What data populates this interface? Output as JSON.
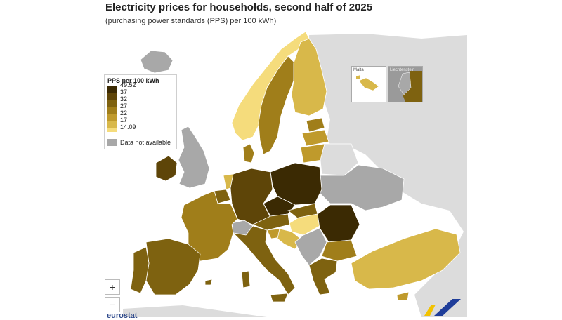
{
  "title": "Electricity prices for households, second half of 2025",
  "subtitle": "(purchasing power standards (PPS) per 100 kWh)",
  "legend": {
    "title": "PPS per 100 kWh",
    "breaks": [
      "49.52",
      "37",
      "32",
      "27",
      "22",
      "17",
      "14.09"
    ],
    "colors": [
      "#3b2a03",
      "#5e4508",
      "#7e6210",
      "#a07e1a",
      "#bf9a2c",
      "#d8b84a",
      "#f5dc7c"
    ],
    "na_label": "Data not available",
    "na_color": "#a8a8a8"
  },
  "insets": {
    "malta": "Malta",
    "liechtenstein": "Liechtenstein"
  },
  "controls": {
    "zoom_in": "+",
    "zoom_out": "−"
  },
  "brand": {
    "name": "eurostat"
  },
  "colors": {
    "non_eu": "#dcdcdc",
    "sea": "#ffffff",
    "border": "#ffffff"
  }
}
